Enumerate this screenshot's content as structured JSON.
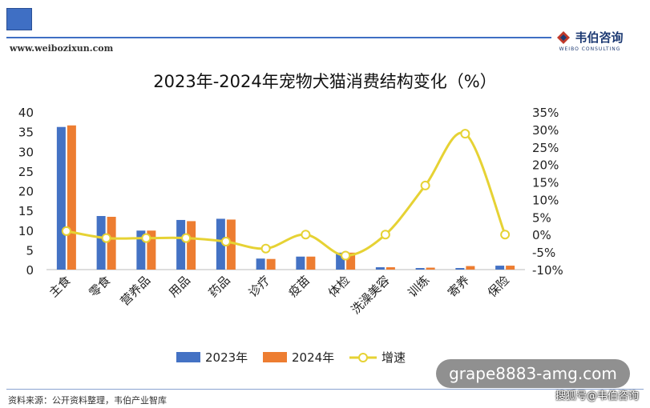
{
  "header": {
    "site_url": "www.weibozixun.com",
    "brand_name": "韦伯咨询",
    "brand_sub": "WEIBO CONSULTING"
  },
  "footer": {
    "source": "资料来源：公开资料整理，韦伯产业智库"
  },
  "overlay": {
    "text": "grape8883-amg.com",
    "sohu": "搜狐号@韦伯咨询"
  },
  "colors": {
    "series_2023": "#4472c4",
    "series_2024": "#ed7d31",
    "series_growth": "#e6d234",
    "axis": "#666666"
  },
  "chart_data": {
    "type": "bar",
    "title": "2023年-2024年宠物犬猫消费结构变化（%）",
    "categories": [
      "主食",
      "零食",
      "营养品",
      "用品",
      "药品",
      "诊疗",
      "疫苗",
      "体检",
      "洗澡美容",
      "训练",
      "寄养",
      "保险"
    ],
    "series": [
      {
        "name": "2023年",
        "kind": "bar",
        "axis": "left",
        "values": [
          36.2,
          13.6,
          9.9,
          12.6,
          12.9,
          2.8,
          3.3,
          4.3,
          0.6,
          0.4,
          0.4,
          1.0
        ]
      },
      {
        "name": "2024年",
        "kind": "bar",
        "axis": "left",
        "values": [
          36.6,
          13.4,
          9.9,
          12.3,
          12.7,
          2.7,
          3.3,
          4.3,
          0.6,
          0.5,
          0.9,
          1.0
        ]
      },
      {
        "name": "增速",
        "kind": "line",
        "axis": "right",
        "values": [
          1.0,
          -1.0,
          -1.0,
          -1.0,
          -2.0,
          -4.0,
          0.0,
          -6.0,
          0.0,
          14.0,
          28.8,
          0.0
        ]
      }
    ],
    "left_axis": {
      "min": 0,
      "max": 40,
      "ticks": [
        "0",
        "5",
        "10",
        "15",
        "20",
        "25",
        "30",
        "35",
        "40"
      ]
    },
    "right_axis": {
      "min": -10,
      "max": 35,
      "ticks": [
        "-10%",
        "-5%",
        "0%",
        "5%",
        "10%",
        "15%",
        "20%",
        "25%",
        "30%",
        "35%"
      ]
    },
    "legend_position": "bottom-center",
    "grid": false
  }
}
